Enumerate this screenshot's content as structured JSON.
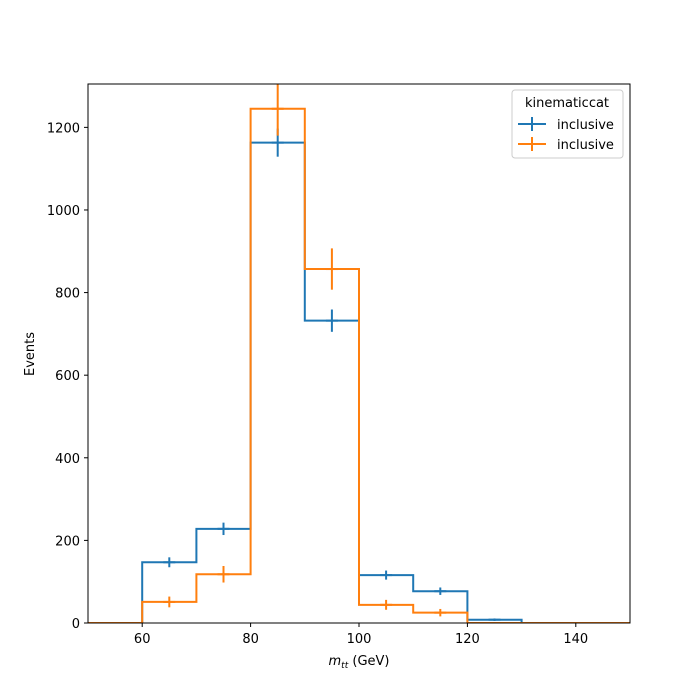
{
  "chart_data": {
    "type": "histogram-step",
    "xlabel": {
      "main": "m",
      "sub": "tt",
      "unit": " (GeV)"
    },
    "ylabel": "Events",
    "xlim": [
      50,
      150
    ],
    "ylim": [
      0,
      1305
    ],
    "xticks": [
      60,
      80,
      100,
      120,
      140
    ],
    "yticks": [
      0,
      200,
      400,
      600,
      800,
      1000,
      1200
    ],
    "bin_edges": [
      50,
      60,
      70,
      80,
      90,
      100,
      110,
      120,
      130,
      140,
      150
    ],
    "legend": {
      "title": "kinematiccat",
      "position": "top-right"
    },
    "series": [
      {
        "name": "inclusive",
        "color": "#1f77b4",
        "values": [
          0,
          147,
          228,
          1163,
          732,
          116,
          77,
          8,
          0,
          0
        ],
        "errors": [
          0,
          12,
          15,
          34,
          27,
          11,
          9,
          3,
          0,
          0
        ]
      },
      {
        "name": "inclusive",
        "color": "#ff7f0e",
        "values": [
          0,
          51,
          118,
          1245,
          857,
          44,
          25,
          0,
          0,
          0
        ],
        "errors": [
          0,
          13,
          20,
          65,
          50,
          12,
          9,
          0,
          0,
          0
        ]
      }
    ]
  }
}
